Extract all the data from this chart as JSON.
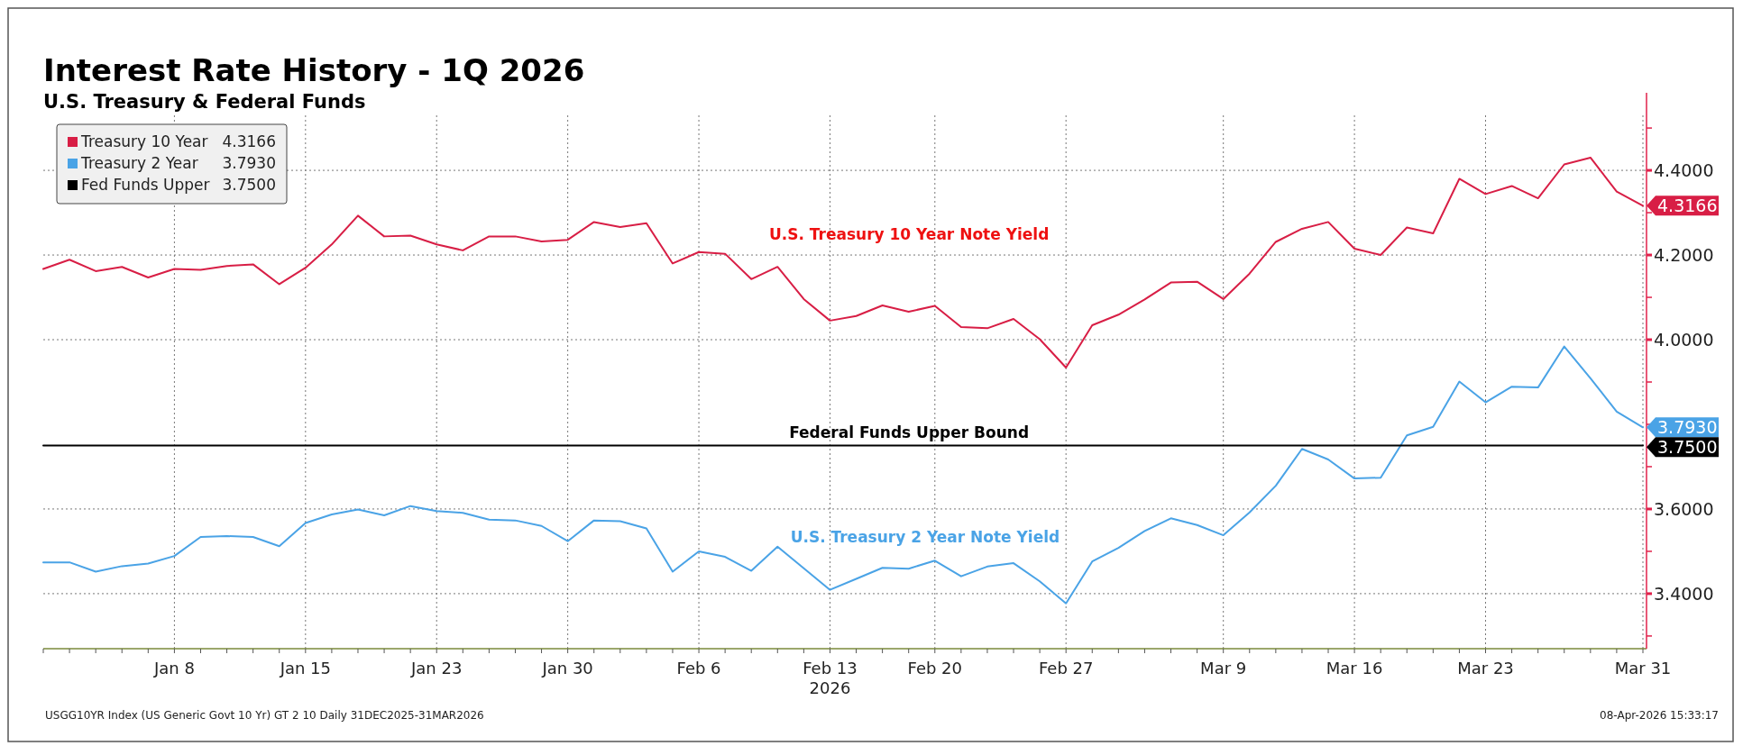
{
  "chart_data": {
    "type": "line",
    "title": "Interest Rate History - 1Q 2026",
    "subtitle": "U.S. Treasury & Federal Funds",
    "xlabel": "2026",
    "categories": [
      null,
      null,
      null,
      null,
      null,
      "Jan 8",
      null,
      null,
      null,
      null,
      "Jan 15",
      null,
      null,
      null,
      null,
      "Jan 23",
      null,
      null,
      null,
      null,
      "Jan 30",
      null,
      null,
      null,
      null,
      "Feb 6",
      null,
      null,
      null,
      null,
      "Feb 13",
      null,
      null,
      null,
      "Feb 20",
      null,
      null,
      null,
      null,
      "Feb 27",
      null,
      null,
      null,
      null,
      null,
      "Mar 9",
      null,
      null,
      null,
      null,
      "Mar 16",
      null,
      null,
      null,
      null,
      "Mar 23",
      null,
      null,
      null,
      null,
      null,
      "Mar 31"
    ],
    "series": [
      {
        "name": "Treasury 10 Year",
        "color": "#d81e45",
        "values": [
          4.167,
          4.189,
          4.162,
          4.172,
          4.147,
          4.167,
          4.165,
          4.174,
          4.178,
          4.131,
          4.17,
          4.225,
          4.293,
          4.244,
          4.246,
          4.225,
          4.211,
          4.244,
          4.244,
          4.232,
          4.236,
          4.278,
          4.266,
          4.275,
          4.18,
          4.207,
          4.203,
          4.143,
          4.172,
          4.096,
          4.045,
          4.056,
          4.081,
          4.066,
          4.08,
          4.03,
          4.027,
          4.049,
          4.001,
          3.934,
          4.034,
          4.059,
          4.095,
          4.135,
          4.137,
          4.096,
          4.156,
          4.231,
          4.262,
          4.278,
          4.215,
          4.2,
          4.265,
          4.251,
          4.38,
          4.344,
          4.363,
          4.334,
          4.414,
          4.43,
          4.35,
          4.3166
        ],
        "value_labels": [
          null,
          null,
          null,
          null,
          null,
          null,
          null,
          null,
          null,
          null,
          null,
          null,
          null,
          null,
          null,
          null,
          null,
          null,
          null,
          null,
          null,
          null,
          null,
          null,
          null,
          null,
          null,
          null,
          null,
          null,
          null,
          null,
          null,
          null,
          null,
          null,
          null,
          null,
          null,
          null,
          null,
          null,
          null,
          null,
          null,
          null,
          null,
          null,
          null,
          null,
          null,
          null,
          null,
          null,
          null,
          null,
          null,
          null,
          null,
          null,
          null,
          "4.3166"
        ]
      },
      {
        "name": "Treasury 2 Year",
        "color": "#4aa3e6",
        "values": [
          3.474,
          3.474,
          3.452,
          3.465,
          3.471,
          3.489,
          3.534,
          3.536,
          3.534,
          3.512,
          3.567,
          3.587,
          3.599,
          3.585,
          3.607,
          3.595,
          3.591,
          3.575,
          3.573,
          3.56,
          3.524,
          3.573,
          3.571,
          3.554,
          3.452,
          3.5,
          3.487,
          3.454,
          3.511,
          3.46,
          3.409,
          3.435,
          3.461,
          3.459,
          3.478,
          3.441,
          3.464,
          3.472,
          3.429,
          3.377,
          3.476,
          3.508,
          3.548,
          3.578,
          3.562,
          3.538,
          3.592,
          3.655,
          3.742,
          3.717,
          3.672,
          3.674,
          3.774,
          3.794,
          3.901,
          3.852,
          3.889,
          3.887,
          3.984,
          3.909,
          3.83,
          3.793
        ],
        "value_labels": [
          null,
          null,
          null,
          null,
          null,
          null,
          null,
          null,
          null,
          null,
          null,
          null,
          null,
          null,
          null,
          null,
          null,
          null,
          null,
          null,
          null,
          null,
          null,
          null,
          null,
          null,
          null,
          null,
          null,
          null,
          null,
          null,
          null,
          null,
          null,
          null,
          null,
          null,
          null,
          null,
          null,
          null,
          null,
          null,
          null,
          null,
          null,
          null,
          null,
          null,
          null,
          null,
          null,
          null,
          null,
          null,
          null,
          null,
          null,
          null,
          null,
          "3.7930"
        ]
      },
      {
        "name": "Fed Funds Upper",
        "color": "#000000",
        "values": [
          3.75,
          3.75,
          3.75,
          3.75,
          3.75,
          3.75,
          3.75,
          3.75,
          3.75,
          3.75,
          3.75,
          3.75,
          3.75,
          3.75,
          3.75,
          3.75,
          3.75,
          3.75,
          3.75,
          3.75,
          3.75,
          3.75,
          3.75,
          3.75,
          3.75,
          3.75,
          3.75,
          3.75,
          3.75,
          3.75,
          3.75,
          3.75,
          3.75,
          3.75,
          3.75,
          3.75,
          3.75,
          3.75,
          3.75,
          3.75,
          3.75,
          3.75,
          3.75,
          3.75,
          3.75,
          3.75,
          3.75,
          3.75,
          3.75,
          3.75,
          3.75,
          3.75,
          3.75,
          3.75,
          3.75,
          3.75,
          3.75,
          3.75,
          3.75,
          3.75,
          3.75,
          3.75
        ],
        "value_labels": [
          null,
          null,
          null,
          null,
          null,
          null,
          null,
          null,
          null,
          null,
          null,
          null,
          null,
          null,
          null,
          null,
          null,
          null,
          null,
          null,
          null,
          null,
          null,
          null,
          null,
          null,
          null,
          null,
          null,
          null,
          null,
          null,
          null,
          null,
          null,
          null,
          null,
          null,
          null,
          null,
          null,
          null,
          null,
          null,
          null,
          null,
          null,
          null,
          null,
          null,
          null,
          null,
          null,
          null,
          null,
          null,
          null,
          null,
          null,
          null,
          null,
          "3.7500"
        ]
      }
    ],
    "ylim": [
      3.27,
      4.53
    ],
    "yticks": [
      {
        "value": 3.3,
        "label": null
      },
      {
        "value": 3.4,
        "label": "3.4000"
      },
      {
        "value": 3.5,
        "label": null
      },
      {
        "value": 3.6,
        "label": "3.6000"
      },
      {
        "value": 3.7,
        "label": null
      },
      {
        "value": 3.8,
        "label": null
      },
      {
        "value": 3.9,
        "label": null
      },
      {
        "value": 4.0,
        "label": "4.0000"
      },
      {
        "value": 4.1,
        "label": null
      },
      {
        "value": 4.2,
        "label": "4.2000"
      },
      {
        "value": 4.3,
        "label": null
      },
      {
        "value": 4.4,
        "label": "4.4000"
      },
      {
        "value": 4.5,
        "label": null
      }
    ],
    "grid": true,
    "legend": "top left",
    "line_style": "solid",
    "annotations": [
      "U.S. Treasury 10 Year Note Yield",
      "U.S. Treasury 2 Year Note Yield",
      "Federal Funds Upper Bound",
      "USGG10YR Index (US Generic Govt 10 Yr) GT 2 10 Daily 31DEC2025-31MAR2026",
      "08-Apr-2026 15:33:17"
    ]
  }
}
